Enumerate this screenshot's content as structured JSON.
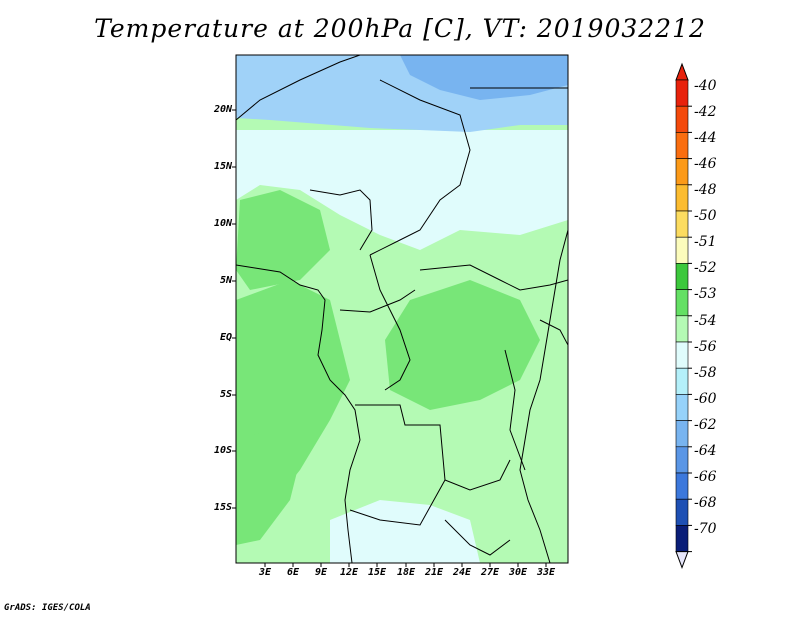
{
  "title": "Temperature at 200hPa [C], VT: 2019032212",
  "credit": "GrADS: IGES/COLA",
  "map": {
    "lat_ticks": [
      "20N",
      "15N",
      "10N",
      "5N",
      "EQ",
      "5S",
      "10S",
      "15S"
    ],
    "lon_ticks": [
      "3E",
      "6E",
      "9E",
      "12E",
      "15E",
      "18E",
      "21E",
      "24E",
      "27E",
      "30E",
      "33E"
    ]
  },
  "colorbar": {
    "labels": [
      "-40",
      "-42",
      "-44",
      "-46",
      "-48",
      "-50",
      "-51",
      "-52",
      "-53",
      "-54",
      "-56",
      "-58",
      "-60",
      "-62",
      "-64",
      "-66",
      "-68",
      "-70"
    ],
    "colors": [
      "#e8220c",
      "#f44a0c",
      "#fa6e10",
      "#fc9a18",
      "#fcbc30",
      "#fcdc60",
      "#fcfcbc",
      "#3cc83c",
      "#64e064",
      "#b4fab4",
      "#e0fcfc",
      "#b4f0fa",
      "#96d2fa",
      "#78b4f0",
      "#5a96e6",
      "#3c78dc",
      "#1e50b4",
      "#0a1e78"
    ]
  },
  "colors": {
    "field_main": "#b4fab4",
    "field_warm": "#78e678",
    "field_cool_1": "#e0fcfc",
    "field_cool_2": "#a0d2f8",
    "field_cool_3": "#78b4f0"
  }
}
